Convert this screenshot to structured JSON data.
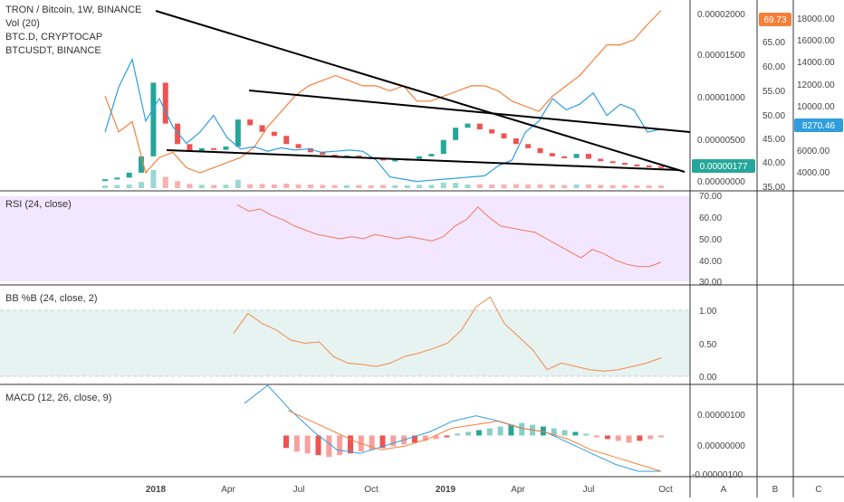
{
  "colors": {
    "up": "#26a69a",
    "down": "#ef5350",
    "btcd_line": "#f57f3a",
    "btcusdt_line": "#2f9ede",
    "trendline": "#000000",
    "rsi_bg": "#f3e6ff",
    "bb_bg": "#e7f3f1",
    "rsi_line": "#f0785a",
    "bb_line": "#f08a4b",
    "macd_line": "#2f9ede",
    "signal_line": "#f57f3a",
    "hist_up": "#26a69a",
    "hist_down": "#ef5350"
  },
  "panes": {
    "main": {
      "legend": [
        "TRON / Bitcoin, 1W, BINANCE",
        "Vol (20)",
        "BTC.D, CRYPTOCAP",
        "BTCUSDT, BINANCE"
      ]
    },
    "rsi": {
      "legend": "RSI (24, close)"
    },
    "bb": {
      "legend": "BB %B (24, close, 2)"
    },
    "macd": {
      "legend": "MACD (12, 26, close, 9)"
    }
  },
  "price_badges": {
    "btcd": "69.73",
    "btcusdt": "8270.46",
    "trx": "0.00000177"
  },
  "axis_labels": {
    "price": [
      "0.00002000",
      "0.00001500",
      "0.00001000",
      "0.00000500",
      "0.00000000"
    ],
    "btcd": [
      "65.00",
      "60.00",
      "55.00",
      "50.00",
      "45.00",
      "40.00",
      "35.00"
    ],
    "btcusdt": [
      "18000.00",
      "16000.00",
      "14000.00",
      "12000.00",
      "10000.00",
      "6000.00",
      "4000.00"
    ],
    "rsi": [
      "70.00",
      "60.00",
      "50.00",
      "40.00",
      "30.00"
    ],
    "bb": [
      "1.00",
      "0.50",
      "0.00"
    ],
    "macd": [
      "0.00000100",
      "0.00000000",
      "-0.00000100"
    ],
    "time": [
      "2018",
      "Apr",
      "Jul",
      "Oct",
      "2019",
      "Apr",
      "Jul",
      "Oct"
    ],
    "corner": [
      "A",
      "B",
      "C"
    ]
  },
  "chart_data": [
    {
      "type": "line",
      "title": "TRON / Bitcoin, 1W, BINANCE",
      "xlabel": "",
      "ylabel": "",
      "x_ticks": [
        "2018",
        "Apr",
        "Jul",
        "Oct",
        "2019",
        "Apr",
        "Jul",
        "Oct"
      ],
      "ylim": [
        0,
        2.1e-05
      ],
      "series": [
        {
          "name": "TRON / Bitcoin",
          "values": [
            2e-07,
            4e-07,
            1e-06,
            3e-06,
            1.2e-05,
            7e-06,
            4.5e-06,
            3.6e-06,
            4e-06,
            3.8e-06,
            4.2e-06,
            7.5e-06,
            6.8e-06,
            6e-06,
            5.5e-06,
            4.5e-06,
            4e-06,
            3.5e-06,
            3.2e-06,
            3e-06,
            3.1e-06,
            2.9e-06,
            2.8e-06,
            2.5e-06,
            2.6e-06,
            2.7e-06,
            3e-06,
            3.3e-06,
            5e-06,
            6.5e-06,
            7e-06,
            6.3e-06,
            5.8e-06,
            5.2e-06,
            4.5e-06,
            4e-06,
            3.4e-06,
            3e-06,
            2.8e-06,
            3.3e-06,
            2.7e-06,
            2.4e-06,
            2.2e-06,
            2e-06,
            1.9e-06,
            1.8e-06,
            1.77e-06
          ]
        },
        {
          "name": "BTC.D, CRYPTOCAP",
          "values": [
            53,
            46,
            48,
            38,
            41,
            42,
            39,
            38,
            39,
            40,
            41,
            43,
            47,
            50,
            53,
            55,
            56,
            57,
            56,
            55,
            55,
            54,
            55,
            52,
            52,
            53,
            54,
            55,
            55,
            54,
            52,
            51,
            50,
            53,
            55,
            57,
            60,
            63,
            63,
            64,
            67,
            69.73
          ]
        },
        {
          "name": "BTCUSDT, BINANCE",
          "values": [
            8000,
            12000,
            14500,
            9000,
            11000,
            8500,
            7000,
            8000,
            9500,
            7500,
            6500,
            6700,
            6300,
            6600,
            6400,
            6500,
            6200,
            6300,
            6400,
            6300,
            5500,
            4000,
            3800,
            3600,
            3700,
            3800,
            3900,
            4000,
            4100,
            5000,
            5500,
            8000,
            9000,
            11000,
            10000,
            10500,
            11500,
            9500,
            10500,
            10000,
            8000,
            8270.46
          ]
        }
      ]
    },
    {
      "type": "line",
      "title": "RSI (24, close)",
      "ylim": [
        30,
        70
      ],
      "series": [
        {
          "name": "RSI",
          "values": [
            66,
            63,
            64,
            61,
            59,
            56,
            54,
            52,
            51,
            50,
            51,
            50,
            52,
            51,
            50,
            51,
            50,
            49,
            51,
            56,
            59,
            65,
            60,
            56,
            55,
            54,
            53,
            50,
            47,
            44,
            41,
            45,
            43,
            40,
            38,
            37,
            37,
            39
          ]
        }
      ]
    },
    {
      "type": "line",
      "title": "BB %B (24, close, 2)",
      "ylim": [
        0,
        1
      ],
      "series": [
        {
          "name": "%B",
          "values": [
            0.65,
            0.95,
            0.8,
            0.7,
            0.55,
            0.5,
            0.52,
            0.3,
            0.2,
            0.18,
            0.15,
            0.2,
            0.3,
            0.35,
            0.42,
            0.5,
            0.7,
            1.05,
            1.2,
            0.8,
            0.6,
            0.4,
            0.1,
            0.2,
            0.15,
            0.1,
            0.08,
            0.1,
            0.15,
            0.2,
            0.28
          ]
        }
      ]
    },
    {
      "type": "line",
      "title": "MACD (12, 26, close, 9)",
      "ylim": [
        -1.1e-06,
        1.3e-06
      ],
      "series": [
        {
          "name": "MACD",
          "values": [
            9e-07,
            1.4e-06,
            7e-07,
            1e-07,
            -4e-07,
            -5e-07,
            -3e-07,
            -1e-07,
            1e-07,
            4e-07,
            5.5e-07,
            4e-07,
            2e-07,
            1e-07,
            -2e-07,
            -5e-07,
            -8e-07,
            -1e-06,
            -1e-06
          ]
        },
        {
          "name": "Signal",
          "values": [
            7e-07,
            4e-07,
            1e-07,
            -2e-07,
            -4e-07,
            -3e-07,
            -1e-07,
            2e-07,
            3e-07,
            4e-07,
            2e-07,
            1e-07,
            -1e-07,
            -4e-07,
            -6e-07,
            -8e-07,
            -1e-06
          ]
        }
      ],
      "histogram": [
        -3.5e-07,
        -4.5e-07,
        -5e-07,
        -5.5e-07,
        -6e-07,
        -5.5e-07,
        -5e-07,
        -4.5e-07,
        -4e-07,
        -3.5e-07,
        -3e-07,
        -2.5e-07,
        -2e-07,
        -1.5e-07,
        -1e-07,
        -5e-08,
        5e-08,
        1e-07,
        1.5e-07,
        2e-07,
        2.5e-07,
        3e-07,
        3.5e-07,
        3e-07,
        2.5e-07,
        2e-07,
        1.5e-07,
        1e-07,
        5e-08,
        -5e-08,
        -1e-07,
        -1.5e-07,
        -2e-07,
        -1.5e-07,
        -1e-07,
        -5e-08
      ]
    }
  ]
}
